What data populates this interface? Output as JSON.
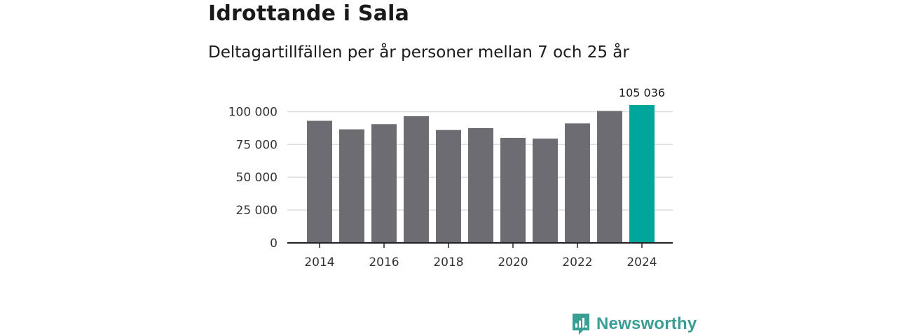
{
  "colors": {
    "bar": "#6d6c72",
    "highlight": "#00a699",
    "grid": "#dddddd",
    "axis": "#222222",
    "brand": "#3a9e94"
  },
  "brand": {
    "name": "Newsworthy",
    "icon": "newsworthy-logo-icon"
  },
  "chart_data": {
    "type": "bar",
    "title": "Idrottande i Sala",
    "subtitle": "Deltagartillfällen per år personer mellan 7 och 25 år",
    "xlabel": "",
    "ylabel": "",
    "ylim": [
      0,
      105036
    ],
    "yticks": [
      0,
      25000,
      50000,
      75000,
      100000
    ],
    "ytick_labels": [
      "0",
      "25 000",
      "50 000",
      "75 000",
      "100 000"
    ],
    "categories": [
      2014,
      2015,
      2016,
      2017,
      2018,
      2019,
      2020,
      2021,
      2022,
      2023,
      2024
    ],
    "xtick_labels": [
      "2014",
      "2016",
      "2018",
      "2020",
      "2022",
      "2024"
    ],
    "values": [
      93000,
      86500,
      90500,
      96500,
      86000,
      87500,
      80000,
      79500,
      91000,
      100500,
      105036
    ],
    "highlight_index": 10,
    "data_labels": [
      {
        "index": 10,
        "text": "105 036"
      }
    ],
    "grid": true
  }
}
